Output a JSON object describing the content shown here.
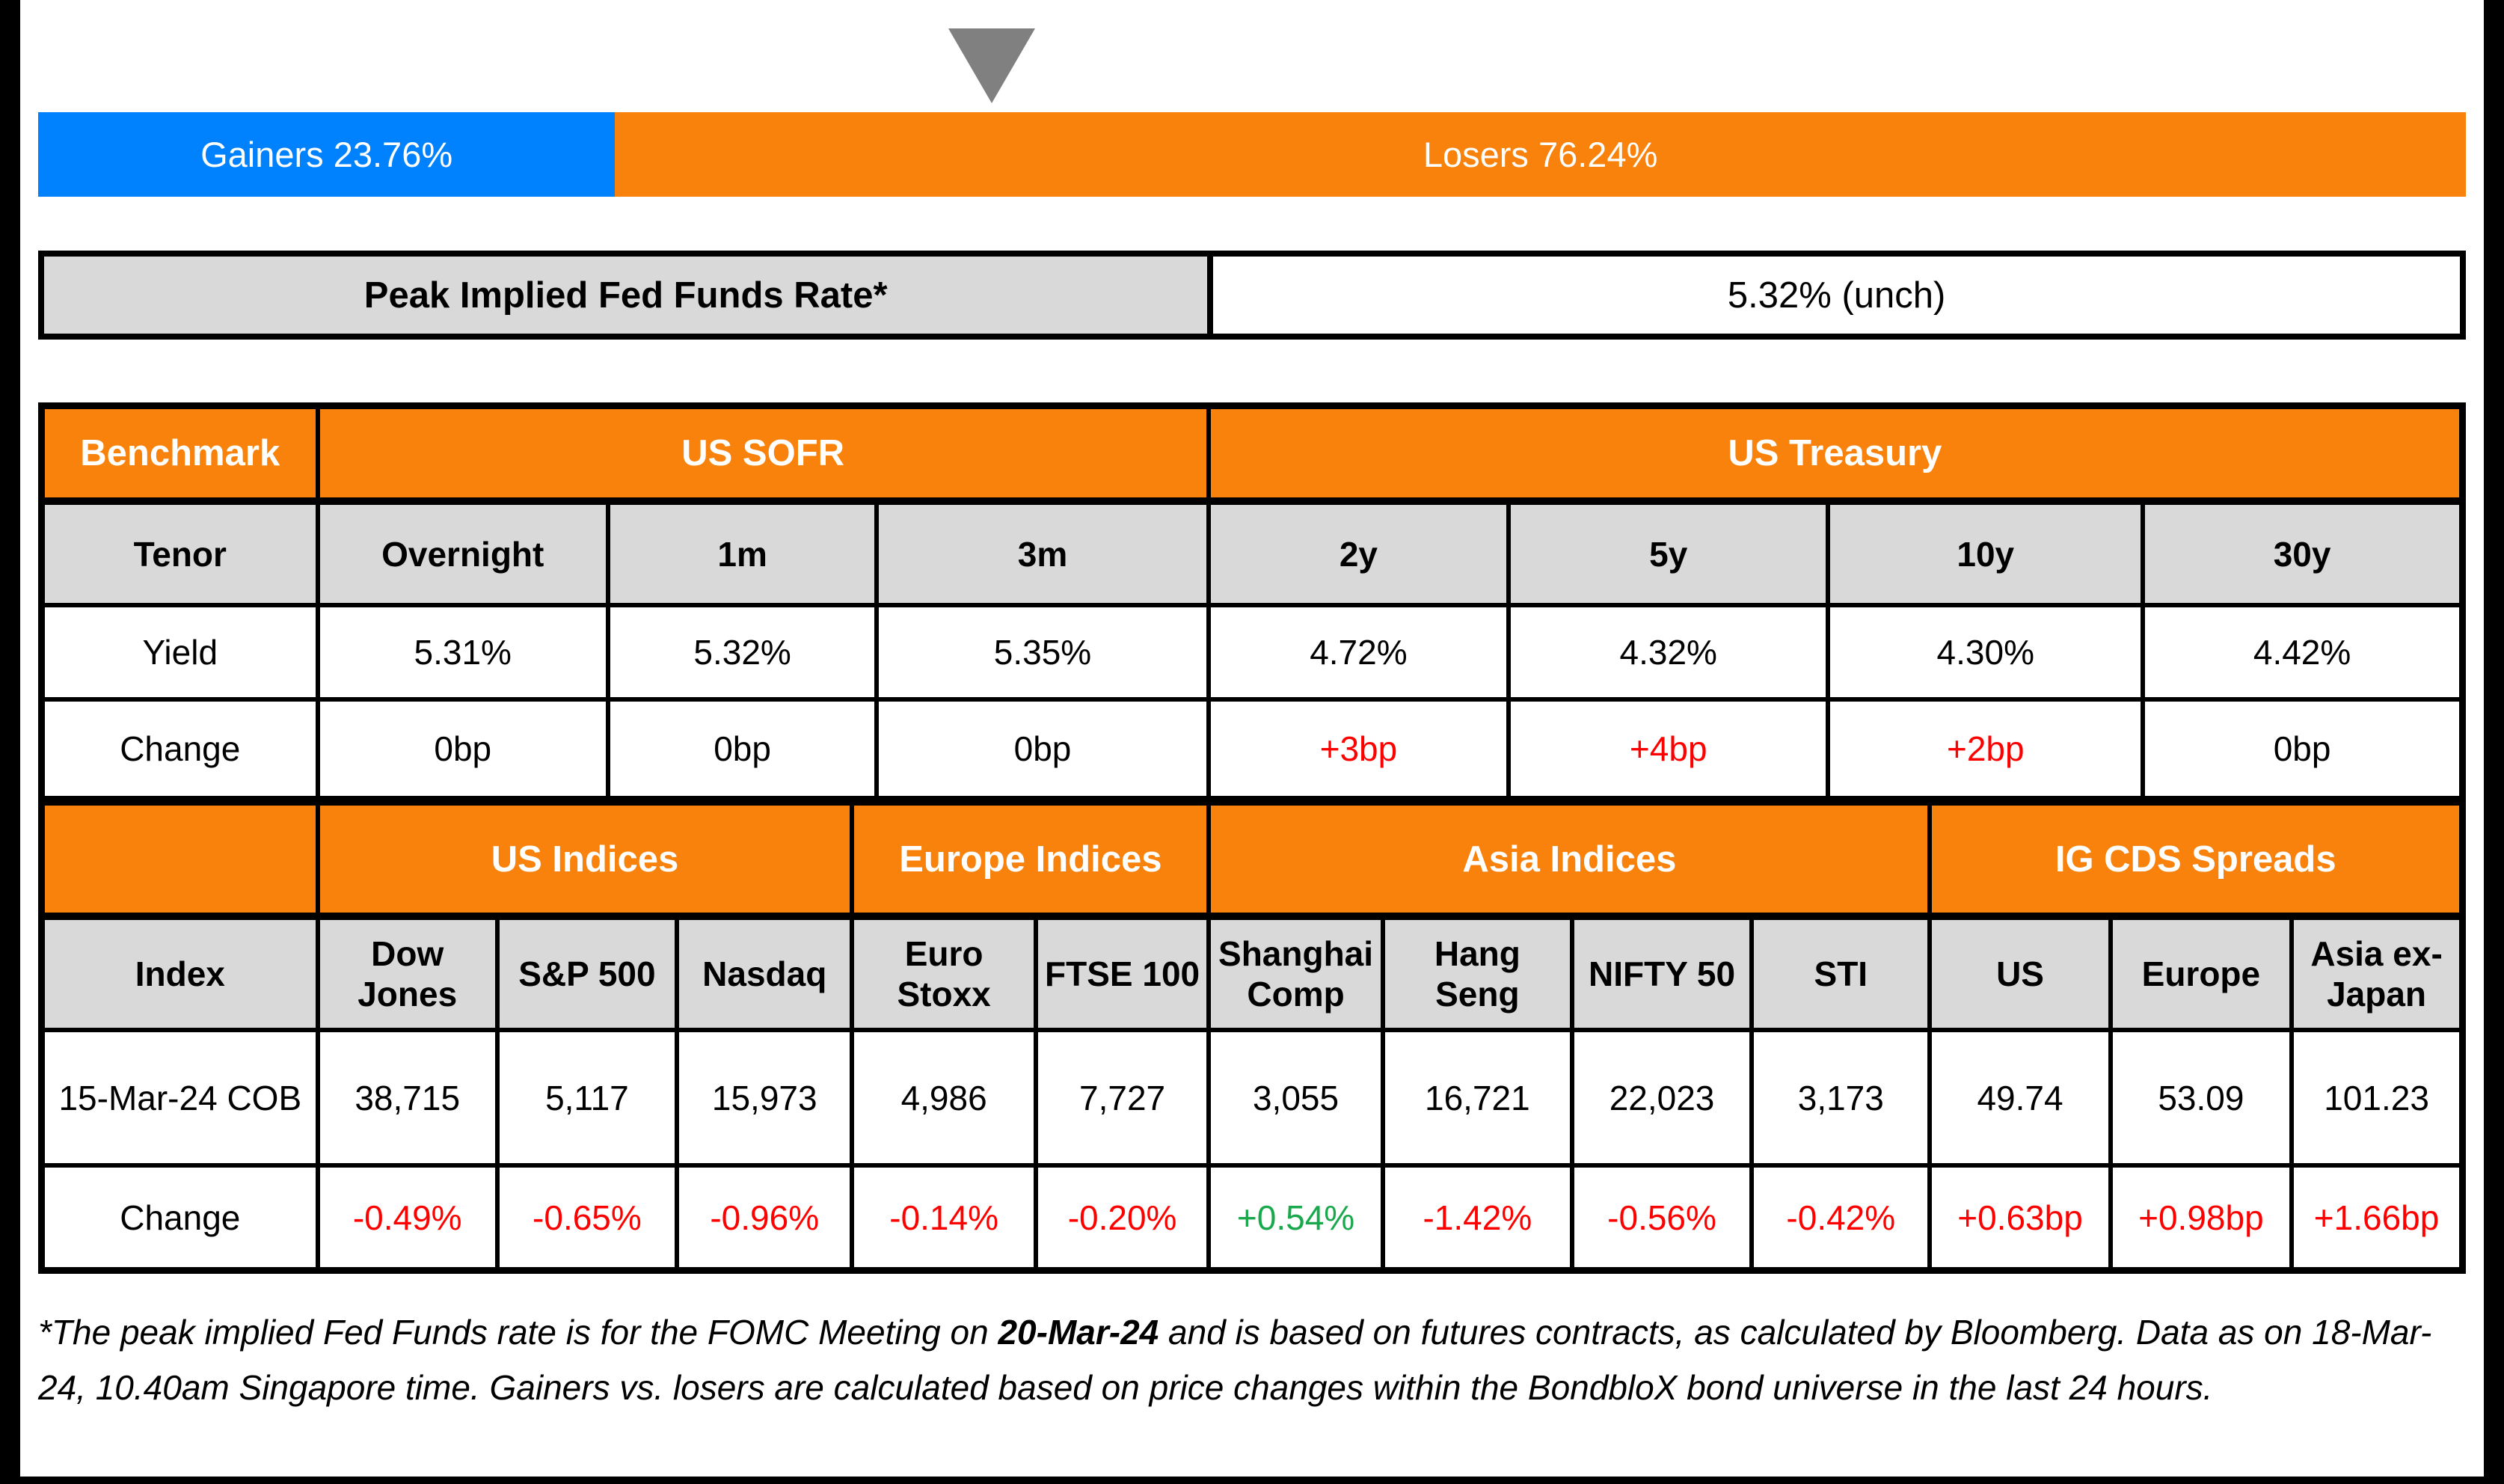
{
  "colors": {
    "accent_orange": "#F8820B",
    "accent_blue": "#0081FE",
    "header_gray": "#D9D9D9",
    "negative_red": "#FF0000",
    "positive_green": "#19A84B",
    "pointer_gray": "#808080"
  },
  "pointer": {
    "icon": "down-triangle",
    "color": "#808080"
  },
  "distribution_bar": {
    "gainers_label": "Gainers 23.76%",
    "losers_label": "Losers 76.24%",
    "gainers_pct": 23.76,
    "losers_pct": 76.24
  },
  "chart_data": {
    "type": "bar",
    "categories": [
      "Gainers",
      "Losers"
    ],
    "values": [
      23.76,
      76.24
    ],
    "title": "Gainers vs Losers (% of BondbloX bond universe)",
    "xlabel": "",
    "ylabel": "",
    "legend_position": "none"
  },
  "peak_rate": {
    "label": "Peak Implied Fed Funds Rate*",
    "value": "5.32% (unch)"
  },
  "rates_table": {
    "corner_header": "Benchmark",
    "groups": [
      {
        "label": "US SOFR",
        "span": 3
      },
      {
        "label": "US Treasury",
        "span": 4
      }
    ],
    "tenor_row": {
      "label": "Tenor",
      "cells": [
        "Overnight",
        "1m",
        "3m",
        "2y",
        "5y",
        "10y",
        "30y"
      ]
    },
    "yield_row": {
      "label": "Yield",
      "cells": [
        "5.31%",
        "5.32%",
        "5.35%",
        "4.72%",
        "4.32%",
        "4.30%",
        "4.42%"
      ]
    },
    "change_row": {
      "label": "Change",
      "cells": [
        {
          "text": "0bp",
          "color": "black"
        },
        {
          "text": "0bp",
          "color": "black"
        },
        {
          "text": "0bp",
          "color": "black"
        },
        {
          "text": "+3bp",
          "color": "red"
        },
        {
          "text": "+4bp",
          "color": "red"
        },
        {
          "text": "+2bp",
          "color": "red"
        },
        {
          "text": "0bp",
          "color": "black"
        }
      ]
    }
  },
  "indices_table": {
    "corner_header": "",
    "groups": [
      {
        "label": "US Indices",
        "span": 3
      },
      {
        "label": "Europe Indices",
        "span": 2
      },
      {
        "label": "Asia Indices",
        "span": 4
      },
      {
        "label": "IG CDS Spreads",
        "span": 3
      }
    ],
    "index_row": {
      "label": "Index",
      "cells": [
        "Dow Jones",
        "S&P 500",
        "Nasdaq",
        "Euro Stoxx",
        "FTSE 100",
        "Shanghai Comp",
        "Hang Seng",
        "NIFTY 50",
        "STI",
        "US",
        "Europe",
        "Asia ex-Japan"
      ]
    },
    "close_row": {
      "label": "15-Mar-24 COB",
      "cells": [
        "38,715",
        "5,117",
        "15,973",
        "4,986",
        "7,727",
        "3,055",
        "16,721",
        "22,023",
        "3,173",
        "49.74",
        "53.09",
        "101.23"
      ]
    },
    "change_row": {
      "label": "Change",
      "cells": [
        {
          "text": "-0.49%",
          "color": "red"
        },
        {
          "text": "-0.65%",
          "color": "red"
        },
        {
          "text": "-0.96%",
          "color": "red"
        },
        {
          "text": "-0.14%",
          "color": "red"
        },
        {
          "text": "-0.20%",
          "color": "red"
        },
        {
          "text": "+0.54%",
          "color": "green"
        },
        {
          "text": "-1.42%",
          "color": "red"
        },
        {
          "text": "-0.56%",
          "color": "red"
        },
        {
          "text": "-0.42%",
          "color": "red"
        },
        {
          "text": "+0.63bp",
          "color": "red"
        },
        {
          "text": "+0.98bp",
          "color": "red"
        },
        {
          "text": "+1.66bp",
          "color": "red"
        }
      ]
    }
  },
  "footnote": {
    "part1": "*The peak implied Fed Funds rate is for the FOMC Meeting on ",
    "bold_date": "20-Mar-24",
    "part2": " and is based on futures contracts, as calculated by Bloomberg. Data as on 18-Mar-24, 10.40am Singapore time. Gainers vs. losers are calculated based on price changes within the BondbloX bond universe in the last 24 hours."
  }
}
